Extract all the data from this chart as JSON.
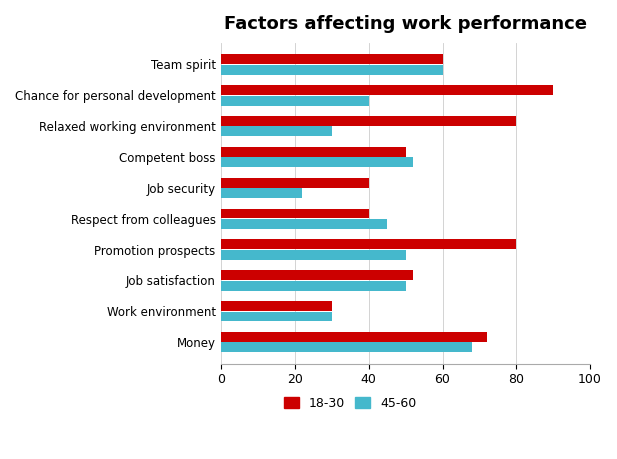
{
  "title": "Factors affecting work performance",
  "categories": [
    "Money",
    "Work environment",
    "Job satisfaction",
    "Promotion prospects",
    "Respect from colleagues",
    "Job security",
    "Competent boss",
    "Relaxed working environment",
    "Chance for personal development",
    "Team spirit"
  ],
  "series": {
    "18-30": [
      72,
      30,
      52,
      80,
      40,
      40,
      50,
      80,
      90,
      60
    ],
    "45-60": [
      68,
      30,
      50,
      50,
      45,
      22,
      52,
      30,
      40,
      60
    ]
  },
  "colors": {
    "18-30": "#CC0000",
    "45-60": "#45B8CC"
  },
  "xlim": [
    0,
    100
  ],
  "xticks": [
    0,
    20,
    40,
    60,
    80,
    100
  ],
  "background_color": "#FFFFFF",
  "title_fontsize": 13,
  "bar_height": 0.32,
  "legend_labels": [
    "18-30",
    "45-60"
  ]
}
